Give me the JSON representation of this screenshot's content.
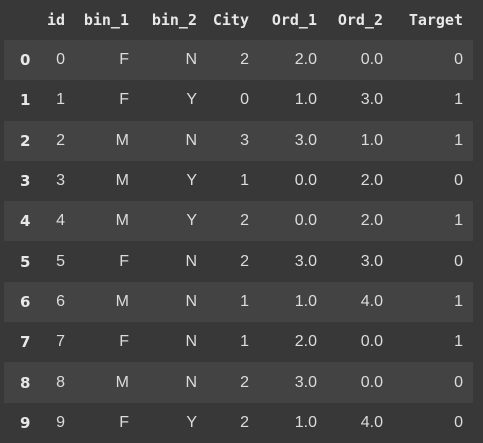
{
  "table": {
    "columns": [
      "id",
      "bin_1",
      "bin_2",
      "City",
      "Ord_1",
      "Ord_2",
      "Target"
    ],
    "rows": [
      {
        "index": "0",
        "cells": [
          "0",
          "F",
          "N",
          "2",
          "2.0",
          "0.0",
          "0"
        ]
      },
      {
        "index": "1",
        "cells": [
          "1",
          "F",
          "Y",
          "0",
          "1.0",
          "3.0",
          "1"
        ]
      },
      {
        "index": "2",
        "cells": [
          "2",
          "M",
          "N",
          "3",
          "3.0",
          "1.0",
          "1"
        ]
      },
      {
        "index": "3",
        "cells": [
          "3",
          "M",
          "Y",
          "1",
          "0.0",
          "2.0",
          "0"
        ]
      },
      {
        "index": "4",
        "cells": [
          "4",
          "M",
          "Y",
          "2",
          "0.0",
          "2.0",
          "1"
        ]
      },
      {
        "index": "5",
        "cells": [
          "5",
          "F",
          "N",
          "2",
          "3.0",
          "3.0",
          "0"
        ]
      },
      {
        "index": "6",
        "cells": [
          "6",
          "M",
          "N",
          "1",
          "1.0",
          "4.0",
          "1"
        ]
      },
      {
        "index": "7",
        "cells": [
          "7",
          "F",
          "N",
          "1",
          "2.0",
          "0.0",
          "1"
        ]
      },
      {
        "index": "8",
        "cells": [
          "8",
          "M",
          "N",
          "2",
          "3.0",
          "0.0",
          "0"
        ]
      },
      {
        "index": "9",
        "cells": [
          "9",
          "F",
          "Y",
          "2",
          "1.0",
          "4.0",
          "0"
        ]
      }
    ]
  }
}
